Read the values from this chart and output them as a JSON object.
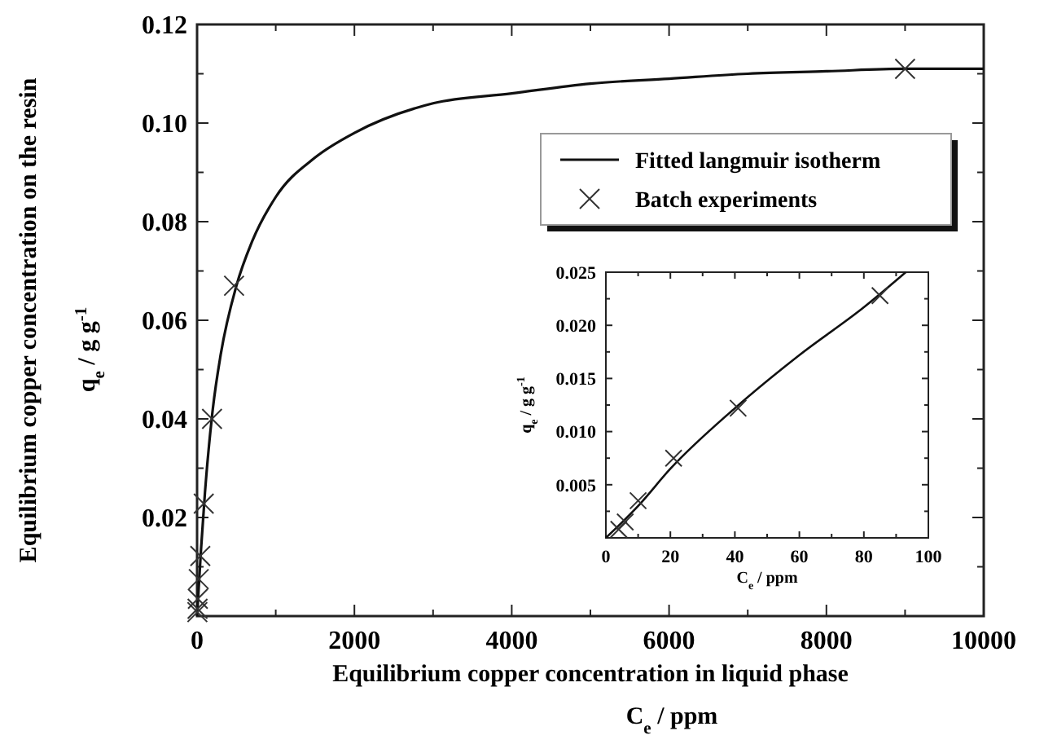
{
  "chart_data": [
    {
      "type": "line",
      "xlabel": "Equilibrium copper concentration in liquid phase\nC$_{e}$  /  ppm",
      "ylabel": "Equilibrium copper concentration on the resin\nq$_{e}$  /  g g$^{-1}$",
      "xlim": [
        0,
        10000
      ],
      "ylim": [
        0,
        0.12
      ],
      "xticks": [
        0,
        {
          "value": 1000,
          "label": null
        },
        2000,
        {
          "value": 3000,
          "label": null
        },
        4000,
        {
          "value": 5000,
          "label": null
        },
        6000,
        {
          "value": 7000,
          "label": null
        },
        8000,
        {
          "value": 9000,
          "label": null
        },
        10000
      ],
      "yticks": [
        {
          "value": 0.01,
          "label": null
        },
        0.02,
        {
          "value": 0.03,
          "label": null
        },
        0.04,
        {
          "value": 0.05,
          "label": null
        },
        0.06,
        {
          "value": 0.07,
          "label": null
        },
        0.08,
        {
          "value": 0.09,
          "label": null
        },
        {
          "value": 0.1,
          "label": "0.10"
        },
        {
          "value": 0.11,
          "label": null
        },
        0.12
      ],
      "legend": "top right",
      "series": [
        {
          "name": "Fitted langmuir isotherm",
          "color": "#111111",
          "line_style": "solid",
          "x": [
            0,
            20,
            50,
            100,
            200,
            300,
            500,
            700,
            1000,
            1500,
            2000,
            3000,
            4000,
            5000,
            6000,
            7000,
            8000,
            9000,
            10000
          ],
          "values": [
            0,
            0.0055,
            0.0135,
            0.025,
            0.042,
            0.053,
            0.067,
            0.076,
            0.085,
            0.093,
            0.098,
            0.104,
            0.106,
            0.108,
            0.109,
            0.11,
            0.1105,
            0.111,
            0.111
          ]
        },
        {
          "name": "Batch experiments",
          "type": "scatter",
          "color": "#333333",
          "marker": "cross",
          "x": [
            4,
            6,
            10,
            21,
            41,
            85,
            190,
            470,
            9000
          ],
          "values": [
            0.0008,
            0.0015,
            0.0035,
            0.0075,
            0.0122,
            0.0228,
            0.04,
            0.067,
            0.111
          ]
        }
      ]
    },
    {
      "type": "line",
      "xlabel": "C$_{e}$  /  ppm",
      "ylabel": "q$_{e}$  /  g g$^{-1}$",
      "xlim": [
        0,
        100
      ],
      "ylim": [
        0,
        0.025
      ],
      "xticks": [
        0,
        {
          "value": 10,
          "label": null
        },
        20,
        {
          "value": 30,
          "label": null
        },
        40,
        {
          "value": 50,
          "label": null
        },
        60,
        {
          "value": 70,
          "label": null
        },
        80,
        {
          "value": 90,
          "label": null
        },
        100
      ],
      "yticks": [
        {
          "value": 0.0025,
          "label": null
        },
        {
          "value": 0.005,
          "label": "0.005"
        },
        {
          "value": 0.0075,
          "label": null
        },
        {
          "value": 0.01,
          "label": "0.010"
        },
        {
          "value": 0.0125,
          "label": null
        },
        {
          "value": 0.015,
          "label": "0.015"
        },
        {
          "value": 0.0175,
          "label": null
        },
        {
          "value": 0.02,
          "label": "0.020"
        },
        {
          "value": 0.0225,
          "label": null
        },
        {
          "value": 0.025,
          "label": "0.025"
        }
      ],
      "series": [
        {
          "color": "#111111",
          "line_style": "solid",
          "x": [
            0,
            10,
            20,
            40,
            60,
            80,
            93
          ],
          "values": [
            0,
            0.003,
            0.0065,
            0.0122,
            0.0172,
            0.0217,
            0.025
          ]
        },
        {
          "type": "scatter",
          "color": "#333333",
          "marker": "cross",
          "x": [
            4,
            6,
            10,
            21,
            41,
            85
          ],
          "values": [
            0.0008,
            0.0015,
            0.0035,
            0.0075,
            0.0122,
            0.0228
          ]
        }
      ]
    }
  ]
}
